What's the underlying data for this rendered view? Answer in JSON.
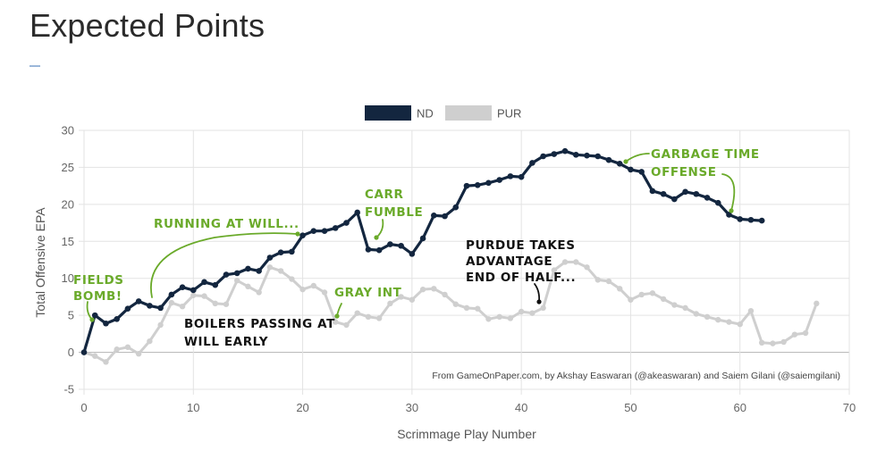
{
  "page": {
    "title": "Expected Points"
  },
  "colors": {
    "nd": "#13263f",
    "pur": "#cfcfcf",
    "green": "#6aaa2a",
    "black": "#111111",
    "grid": "#e3e3e3"
  },
  "chart_data": {
    "type": "line",
    "title": "",
    "xlabel": "Scrimmage Play Number",
    "ylabel": "Total Offensive EPA",
    "xlim": [
      0,
      70
    ],
    "ylim": [
      -5,
      30
    ],
    "x_ticks": [
      "0",
      "10",
      "20",
      "30",
      "40",
      "50",
      "60",
      "70"
    ],
    "y_ticks": [
      "-5",
      "0",
      "5",
      "10",
      "15",
      "20",
      "25",
      "30"
    ],
    "legend": [
      "ND",
      "PUR"
    ],
    "series": [
      {
        "name": "ND",
        "color": "#13263f",
        "x": [
          0,
          1,
          2,
          3,
          4,
          5,
          6,
          7,
          8,
          9,
          10,
          11,
          12,
          13,
          14,
          15,
          16,
          17,
          18,
          19,
          20,
          21,
          22,
          23,
          24,
          25,
          26,
          27,
          28,
          29,
          30,
          31,
          32,
          33,
          34,
          35,
          36,
          37,
          38,
          39,
          40,
          41,
          42,
          43,
          44,
          45,
          46,
          47,
          48,
          49,
          50,
          51,
          52,
          53,
          54,
          55,
          56,
          57,
          58,
          59,
          60,
          61,
          62
        ],
        "values": [
          0,
          5,
          3.9,
          4.5,
          5.9,
          6.9,
          6.3,
          6,
          7.8,
          8.8,
          8.4,
          9.5,
          9.1,
          10.5,
          10.7,
          11.3,
          11,
          12.8,
          13.5,
          13.6,
          15.8,
          16.4,
          16.4,
          16.8,
          17.5,
          18.9,
          13.9,
          13.8,
          14.6,
          14.4,
          13.3,
          15.4,
          18.5,
          18.4,
          19.6,
          22.5,
          22.6,
          22.9,
          23.3,
          23.8,
          23.7,
          25.6,
          26.5,
          26.8,
          27.2,
          26.7,
          26.6,
          26.5,
          26,
          25.5,
          24.7,
          24.4,
          21.8,
          21.4,
          20.7,
          21.7,
          21.4,
          20.9,
          20.2,
          18.6,
          18,
          17.9,
          17.8
        ]
      },
      {
        "name": "PUR",
        "color": "#cfcfcf",
        "x": [
          0,
          1,
          2,
          3,
          4,
          5,
          6,
          7,
          8,
          9,
          10,
          11,
          12,
          13,
          14,
          15,
          16,
          17,
          18,
          19,
          20,
          21,
          22,
          23,
          24,
          25,
          26,
          27,
          28,
          29,
          30,
          31,
          32,
          33,
          34,
          35,
          36,
          37,
          38,
          39,
          40,
          41,
          42,
          43,
          44,
          45,
          46,
          47,
          48,
          49,
          50,
          51,
          52,
          53,
          54,
          55,
          56,
          57,
          58,
          59,
          60,
          61,
          62,
          63,
          64,
          65,
          66,
          67
        ],
        "values": [
          0,
          -0.5,
          -1.3,
          0.4,
          0.7,
          -0.2,
          1.5,
          3.7,
          6.7,
          6.2,
          7.7,
          7.6,
          6.6,
          6.5,
          9.7,
          8.9,
          8.1,
          11.5,
          11,
          9.9,
          8.5,
          9,
          8.1,
          4.1,
          3.7,
          5.3,
          4.8,
          4.6,
          6.6,
          7.5,
          7.1,
          8.5,
          8.6,
          7.8,
          6.5,
          6,
          5.9,
          4.5,
          4.8,
          4.6,
          5.5,
          5.3,
          6,
          11.1,
          12.2,
          12.2,
          11.5,
          9.8,
          9.6,
          8.6,
          7.1,
          7.8,
          8,
          7.2,
          6.4,
          6,
          5.2,
          4.8,
          4.4,
          4.1,
          3.8,
          5.6,
          1.3,
          1.2,
          1.4,
          2.4,
          2.6,
          6.6
        ]
      }
    ],
    "annotations": [
      {
        "lines": [
          "FIELDS",
          "BOMB!"
        ],
        "color": "green"
      },
      {
        "lines": [
          "RUNNING AT WILL..."
        ],
        "color": "green"
      },
      {
        "lines": [
          "CARR",
          "FUMBLE"
        ],
        "color": "green"
      },
      {
        "lines": [
          "GRAY INT"
        ],
        "color": "green"
      },
      {
        "lines": [
          "GARBAGE TIME",
          "OFFENSE"
        ],
        "color": "green"
      },
      {
        "lines": [
          "BOILERS PASSING AT",
          "WILL EARLY"
        ],
        "color": "black"
      },
      {
        "lines": [
          "PURDUE TAKES",
          "ADVANTAGE",
          "END OF HALF..."
        ],
        "color": "black"
      }
    ],
    "credit": "From GameOnPaper.com, by Akshay Easwaran (@akeaswaran) and Saiem Gilani (@saiemgilani)"
  }
}
